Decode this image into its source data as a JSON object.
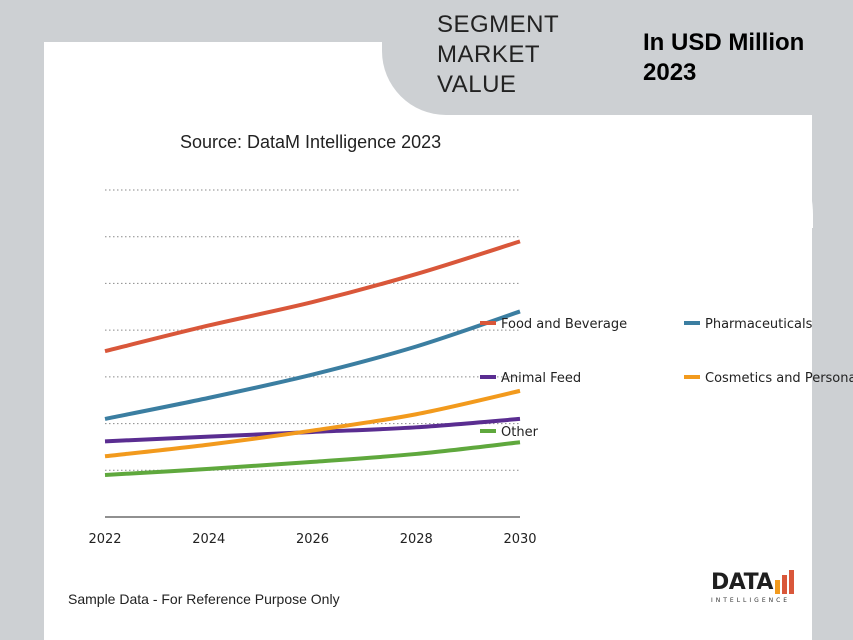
{
  "header": {
    "segment_title": "SEGMENT MARKET VALUE",
    "unit_title": "In USD Million 2023"
  },
  "source_label": "Source: DataM Intelligence 2023",
  "footnote": "Sample Data - For Reference Purpose Only",
  "logo": {
    "main": "DATA",
    "sub": "INTELLIGENCE"
  },
  "chart_data": {
    "type": "line",
    "x": [
      2022,
      2024,
      2026,
      2028,
      2030
    ],
    "xlim": [
      2022,
      2030
    ],
    "ylim": [
      0,
      7
    ],
    "grid": true,
    "legend_position": "right",
    "series": [
      {
        "name": "Food and Beverage",
        "color": "#d9573a",
        "values": [
          3.55,
          4.1,
          4.6,
          5.2,
          5.9
        ]
      },
      {
        "name": "Pharmaceuticals",
        "color": "#3b7ea1",
        "values": [
          2.1,
          2.55,
          3.05,
          3.65,
          4.4
        ]
      },
      {
        "name": "Animal Feed",
        "color": "#5a2d91",
        "values": [
          1.62,
          1.72,
          1.82,
          1.92,
          2.1
        ]
      },
      {
        "name": "Cosmetics and Personal Care",
        "color": "#f29a1d",
        "values": [
          1.3,
          1.55,
          1.85,
          2.2,
          2.7
        ]
      },
      {
        "name": "Other",
        "color": "#5fa83d",
        "values": [
          0.9,
          1.03,
          1.18,
          1.35,
          1.6
        ]
      }
    ]
  }
}
